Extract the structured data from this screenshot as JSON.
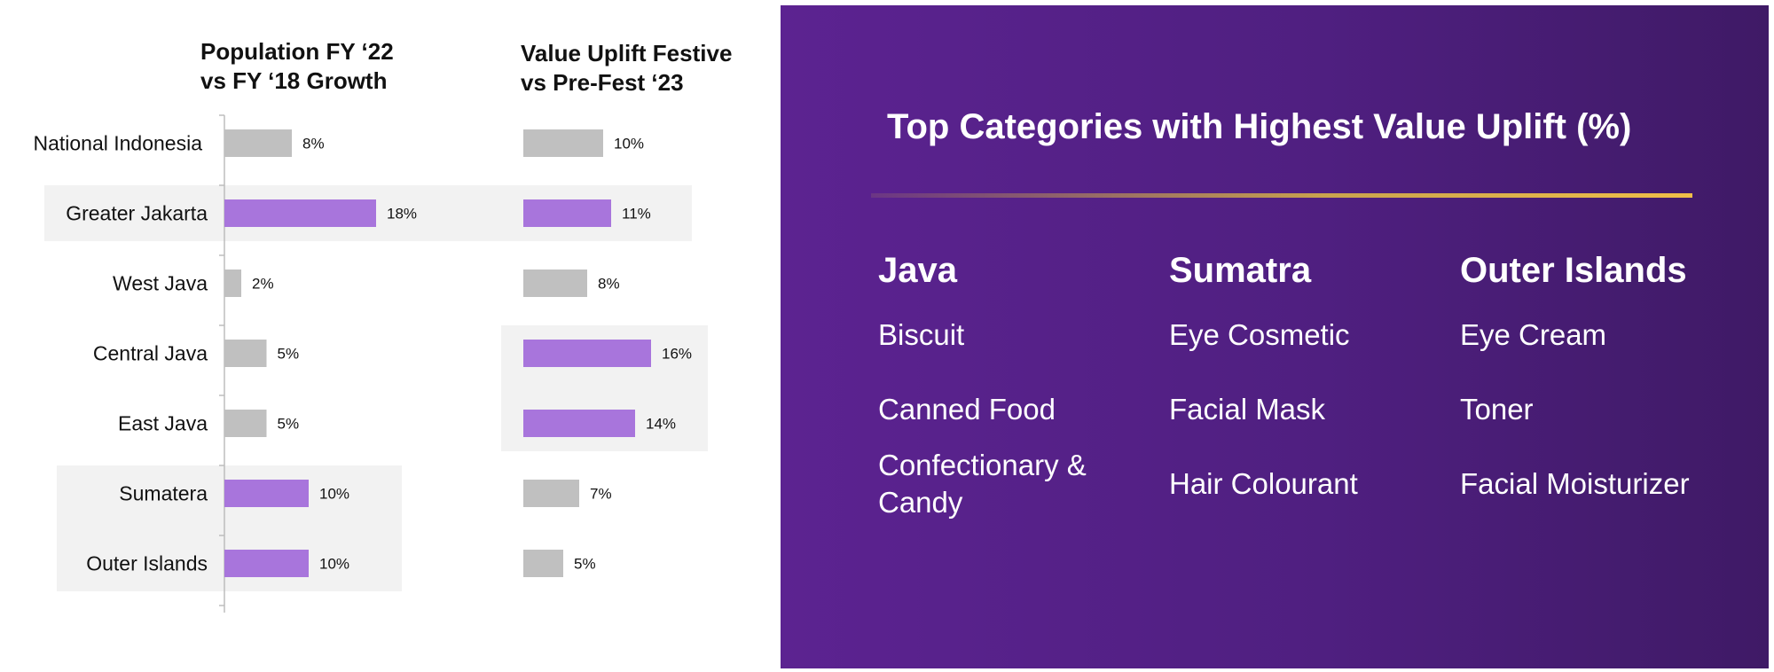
{
  "chart_data": [
    {
      "type": "bar",
      "orientation": "horizontal",
      "title": "Population FY ‘22 vs FY ‘18 Growth",
      "title_lines": [
        "Population FY ‘22",
        "vs FY ‘18 Growth"
      ],
      "categories": [
        "National Indonesia",
        "Greater Jakarta",
        "West Java",
        "Central Java",
        "East Java",
        "Sumatera",
        "Outer Islands"
      ],
      "values": [
        8,
        18,
        2,
        5,
        5,
        10,
        10
      ],
      "value_labels": [
        "8%",
        "18%",
        "2%",
        "5%",
        "5%",
        "10%",
        "10%"
      ],
      "highlighted": [
        false,
        true,
        false,
        false,
        false,
        true,
        true
      ],
      "xlim": [
        0,
        20
      ],
      "grid": false
    },
    {
      "type": "bar",
      "orientation": "horizontal",
      "title": "Value Uplift Festive vs Pre-Fest ‘23",
      "title_lines": [
        "Value Uplift Festive",
        "vs Pre-Fest ‘23"
      ],
      "categories": [
        "National Indonesia",
        "Greater Jakarta",
        "West Java",
        "Central Java",
        "East Java",
        "Sumatera",
        "Outer Islands"
      ],
      "values": [
        10,
        11,
        8,
        16,
        14,
        7,
        5
      ],
      "value_labels": [
        "10%",
        "11%",
        "8%",
        "16%",
        "14%",
        "7%",
        "5%"
      ],
      "highlighted": [
        false,
        true,
        false,
        true,
        true,
        false,
        false
      ],
      "xlim": [
        0,
        20
      ],
      "grid": false
    }
  ],
  "colors": {
    "bar_default": "#c0c0c0",
    "bar_highlight": "#a875dc",
    "highlight_band": "#f2f2f2",
    "axis": "#bdbdbd",
    "panel": "#52207f",
    "accent_line": "#e8b84a"
  },
  "panel": {
    "title": "Top Categories with Highest Value Uplift (%)",
    "regions": [
      {
        "name": "Java",
        "items": [
          "Biscuit",
          "Canned Food",
          "Confectionary & Candy"
        ]
      },
      {
        "name": "Sumatra",
        "items": [
          "Eye Cosmetic",
          "Facial Mask",
          "Hair Colourant"
        ]
      },
      {
        "name": "Outer Islands",
        "items": [
          "Eye Cream",
          "Toner",
          "Facial Moisturizer"
        ]
      }
    ]
  }
}
